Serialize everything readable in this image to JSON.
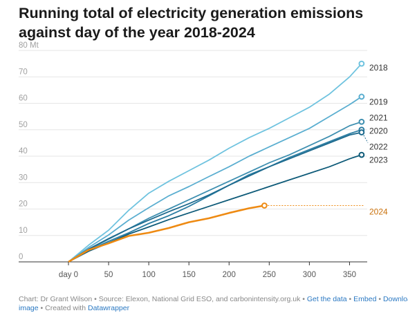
{
  "chart_data": {
    "type": "line",
    "title": "Running total of electricity generation emissions against day of the year 2018-2024",
    "y_unit_label": "80 Mt",
    "y_ticks": [
      0,
      10,
      20,
      30,
      40,
      50,
      60,
      70
    ],
    "x_ticks": [
      {
        "value": 0,
        "label": "day 0"
      },
      {
        "value": 50,
        "label": "50"
      },
      {
        "value": 100,
        "label": "100"
      },
      {
        "value": 150,
        "label": "150"
      },
      {
        "value": 200,
        "label": "200"
      },
      {
        "value": 250,
        "label": "250"
      },
      {
        "value": 300,
        "label": "300"
      },
      {
        "value": 350,
        "label": "350"
      }
    ],
    "xlim": [
      -62,
      372
    ],
    "ylim": [
      0,
      80
    ],
    "x": [
      0,
      25,
      50,
      75,
      100,
      125,
      150,
      175,
      200,
      225,
      250,
      275,
      300,
      325,
      350,
      365
    ],
    "series": [
      {
        "name": "2018",
        "color": "#6fc3df",
        "values": [
          0,
          6.3,
          12,
          19.5,
          26,
          30.5,
          34.5,
          38.5,
          43,
          47,
          50.5,
          54.5,
          58.5,
          63.5,
          70,
          75
        ]
      },
      {
        "name": "2019",
        "color": "#5aaed0",
        "values": [
          0,
          5.4,
          10.2,
          15.8,
          20.5,
          25,
          28.5,
          32.3,
          36,
          40,
          43.5,
          47,
          50.5,
          55,
          59.5,
          62.5
        ]
      },
      {
        "name": "2021",
        "color": "#3e8fb0",
        "values": [
          0,
          4.5,
          8.6,
          12.5,
          16.5,
          20,
          23.5,
          27,
          30.5,
          34,
          37.5,
          40.5,
          44,
          47.5,
          51.5,
          53
        ]
      },
      {
        "name": "2020",
        "color": "#2c7ea3",
        "values": [
          0,
          4.2,
          7.8,
          11,
          14.5,
          17.5,
          21,
          25,
          29,
          33,
          36,
          39.5,
          42.5,
          45.5,
          48.5,
          50
        ]
      },
      {
        "name": "2022",
        "color": "#1d6a8e",
        "values": [
          0,
          4.8,
          8.8,
          12.5,
          15.8,
          19,
          22,
          25.3,
          29,
          32.5,
          36,
          39,
          42,
          45,
          48,
          49
        ]
      },
      {
        "name": "2023",
        "color": "#0d5a78",
        "values": [
          0,
          4,
          7.2,
          10.5,
          13.2,
          16,
          18.5,
          21,
          23.5,
          26,
          28.5,
          31,
          33.5,
          36,
          39,
          40.5
        ]
      },
      {
        "name": "2024",
        "color": "#ee8a12",
        "x": [
          0,
          25,
          50,
          75,
          100,
          125,
          150,
          175,
          200,
          225,
          244
        ],
        "values": [
          0,
          4.5,
          7,
          9.8,
          11,
          12.8,
          15,
          16.5,
          18.5,
          20.3,
          21.3
        ]
      }
    ],
    "end_labels": [
      {
        "series": "2018",
        "label": "2018",
        "label_value": 73.5
      },
      {
        "series": "2019",
        "label": "2019",
        "label_value": 60.5
      },
      {
        "series": "2021",
        "label": "2021",
        "label_value": 54.5
      },
      {
        "series": "2020",
        "label": "2020",
        "label_value": 49.5
      },
      {
        "series": "2022",
        "label": "2022",
        "label_value": 43.5
      },
      {
        "series": "2023",
        "label": "2023",
        "label_value": 38.5
      },
      {
        "series": "2024",
        "label": "2024",
        "label_value": 19
      }
    ],
    "grid": "horizontal"
  },
  "footer": {
    "source": "Chart: Dr Grant Wilson • Source: Elexon, National Grid ESO, and carbonintensity.org.uk • ",
    "get_data": "Get the data",
    "sep1": " • ",
    "embed": "Embed",
    "sep2": " • ",
    "download": "Download",
    "line2_a": "image",
    "line2_b": " • Created with ",
    "datawrapper": "Datawrapper"
  }
}
